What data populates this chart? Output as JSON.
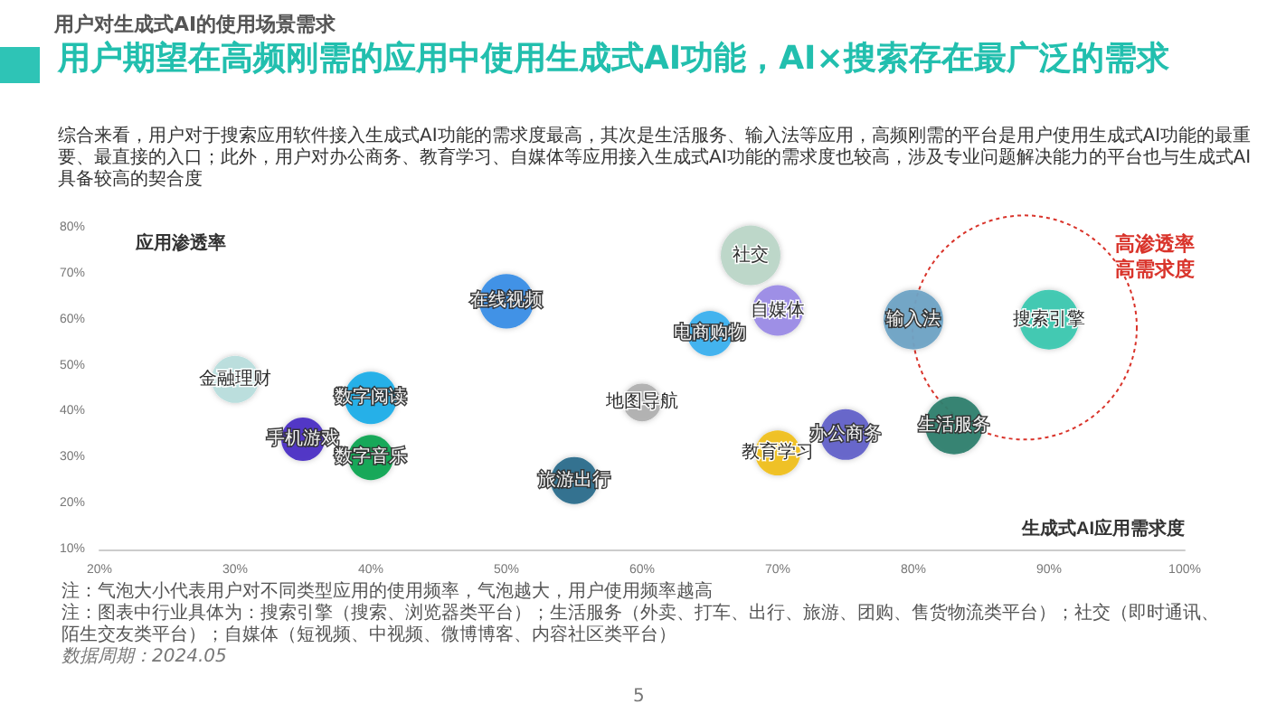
{
  "chart_data": {
    "type": "bubble",
    "title": "用户期望在高频刚需的应用中使用生成式AI功能，AI×搜索存在最广泛的需求",
    "subtitle": "用户对生成式AI的使用场景需求",
    "xlabel": "生成式AI应用需求度",
    "ylabel": "应用渗透率",
    "xlim": [
      20,
      100
    ],
    "xticks": [
      {
        "value": 20,
        "label": "20%"
      },
      {
        "value": 30,
        "label": "30%"
      },
      {
        "value": 40,
        "label": "40%"
      },
      {
        "value": 50,
        "label": "50%"
      },
      {
        "value": 60,
        "label": "60%"
      },
      {
        "value": 70,
        "label": "70%"
      },
      {
        "value": 80,
        "label": "80%"
      },
      {
        "value": 90,
        "label": "90%"
      },
      {
        "value": 100,
        "label": "100%"
      }
    ],
    "ylim": [
      10,
      80
    ],
    "yticks": [
      {
        "value": 10,
        "label": "10%"
      },
      {
        "value": 20,
        "label": "20%"
      },
      {
        "value": 30,
        "label": "30%"
      },
      {
        "value": 40,
        "label": "40%"
      },
      {
        "value": 50,
        "label": "50%"
      },
      {
        "value": 60,
        "label": "60%"
      },
      {
        "value": 70,
        "label": "70%"
      },
      {
        "value": 80,
        "label": "80%"
      }
    ],
    "grid": false,
    "legend": false,
    "series": [
      {
        "name": "金融理财",
        "color": "#b8dedd",
        "x": [
          30
        ],
        "values": [
          47
        ],
        "sizes": [
          0.62
        ]
      },
      {
        "name": "手机游戏",
        "color": "#4b2fc4",
        "x": [
          35
        ],
        "values": [
          34
        ],
        "sizes": [
          0.53
        ]
      },
      {
        "name": "数字阅读",
        "color": "#1eaee8",
        "x": [
          40
        ],
        "values": [
          43
        ],
        "sizes": [
          0.77
        ]
      },
      {
        "name": "数字音乐",
        "color": "#12a552",
        "x": [
          40
        ],
        "values": [
          30
        ],
        "sizes": [
          0.57
        ]
      },
      {
        "name": "在线视频",
        "color": "#3a8ee6",
        "x": [
          50
        ],
        "values": [
          64
        ],
        "sizes": [
          0.83
        ]
      },
      {
        "name": "旅游出行",
        "color": "#2a6e8c",
        "x": [
          55
        ],
        "values": [
          25
        ],
        "sizes": [
          0.62
        ]
      },
      {
        "name": "地图导航",
        "color": "#b0b0b0",
        "x": [
          60
        ],
        "values": [
          42
        ],
        "sizes": [
          0.4
        ]
      },
      {
        "name": "社交",
        "color": "#bcd6c8",
        "x": [
          68
        ],
        "values": [
          74
        ],
        "sizes": [
          1
        ]
      },
      {
        "name": "自媒体",
        "color": "#9b8be6",
        "x": [
          70
        ],
        "values": [
          62
        ],
        "sizes": [
          0.72
        ]
      },
      {
        "name": "电商购物",
        "color": "#3db1ef",
        "x": [
          65
        ],
        "values": [
          57
        ],
        "sizes": [
          0.57
        ]
      },
      {
        "name": "教育学习",
        "color": "#f0c020",
        "x": [
          70
        ],
        "values": [
          31
        ],
        "sizes": [
          0.57
        ]
      },
      {
        "name": "办公商务",
        "color": "#6361c9",
        "x": [
          75
        ],
        "values": [
          35
        ],
        "sizes": [
          0.72
        ]
      },
      {
        "name": "输入法",
        "color": "#6fa3c5",
        "x": [
          80
        ],
        "values": [
          60
        ],
        "sizes": [
          1
        ]
      },
      {
        "name": "生活服务",
        "color": "#2f7f6f",
        "x": [
          83
        ],
        "values": [
          37
        ],
        "sizes": [
          0.94
        ]
      },
      {
        "name": "搜索引擎",
        "color": "#3cc8b0",
        "x": [
          90
        ],
        "values": [
          60
        ],
        "sizes": [
          1
        ]
      }
    ],
    "annotations": [
      "综合来看，用户对于搜索应用软件接入生成式AI功能的需求度最高，其次是生活服务、输入法等应用，高频刚需的平台是用户使用生成式AI功能的最重要、最直接的入口；此外，用户对办公商务、教育学习、自媒体等应用接入生成式AI功能的需求度也较高，涉及专业问题解决能力的平台也与生成式AI具备较高的契合度",
      "高渗透率高需求度",
      "注：气泡大小代表用户对不同类型应用的使用频率，气泡越大，用户使用频率越高",
      "注：图表中行业具体为：搜索引擎（搜索、浏览器类平台）；生活服务（外卖、打车、出行、旅游、团购、售货物流类平台）；社交（即时通讯、陌生交友类平台）；自媒体（短视频、中视频、微博博客、内容社区类平台）",
      "数据周期：2024.05",
      "5"
    ]
  }
}
